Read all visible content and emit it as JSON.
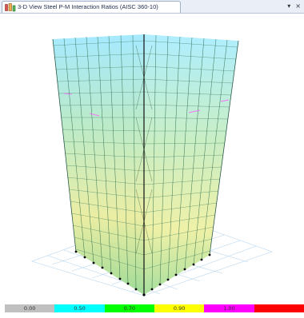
{
  "window": {
    "tab_title": "3-D View  Steel P-M Interaction Ratios  (AISC 360-10)",
    "menu_glyph": "▾",
    "close_glyph": "×"
  },
  "icons": {
    "tab": "frame-view-icon"
  },
  "legend": {
    "colors": [
      "#c0c0c0",
      "#00ffff",
      "#00ff00",
      "#ffff00",
      "#ff00ff",
      "#ff0000"
    ],
    "labels": [
      "0.00",
      "0.50",
      "0.70",
      "0.90",
      "1.00",
      ""
    ]
  },
  "colors": {
    "frame_low": "#7fe6ff",
    "frame_mid": "#7fe07f",
    "frame_high": "#f2f07a",
    "frame_peak": "#ff5aff",
    "grid": "#b8d6ee"
  }
}
